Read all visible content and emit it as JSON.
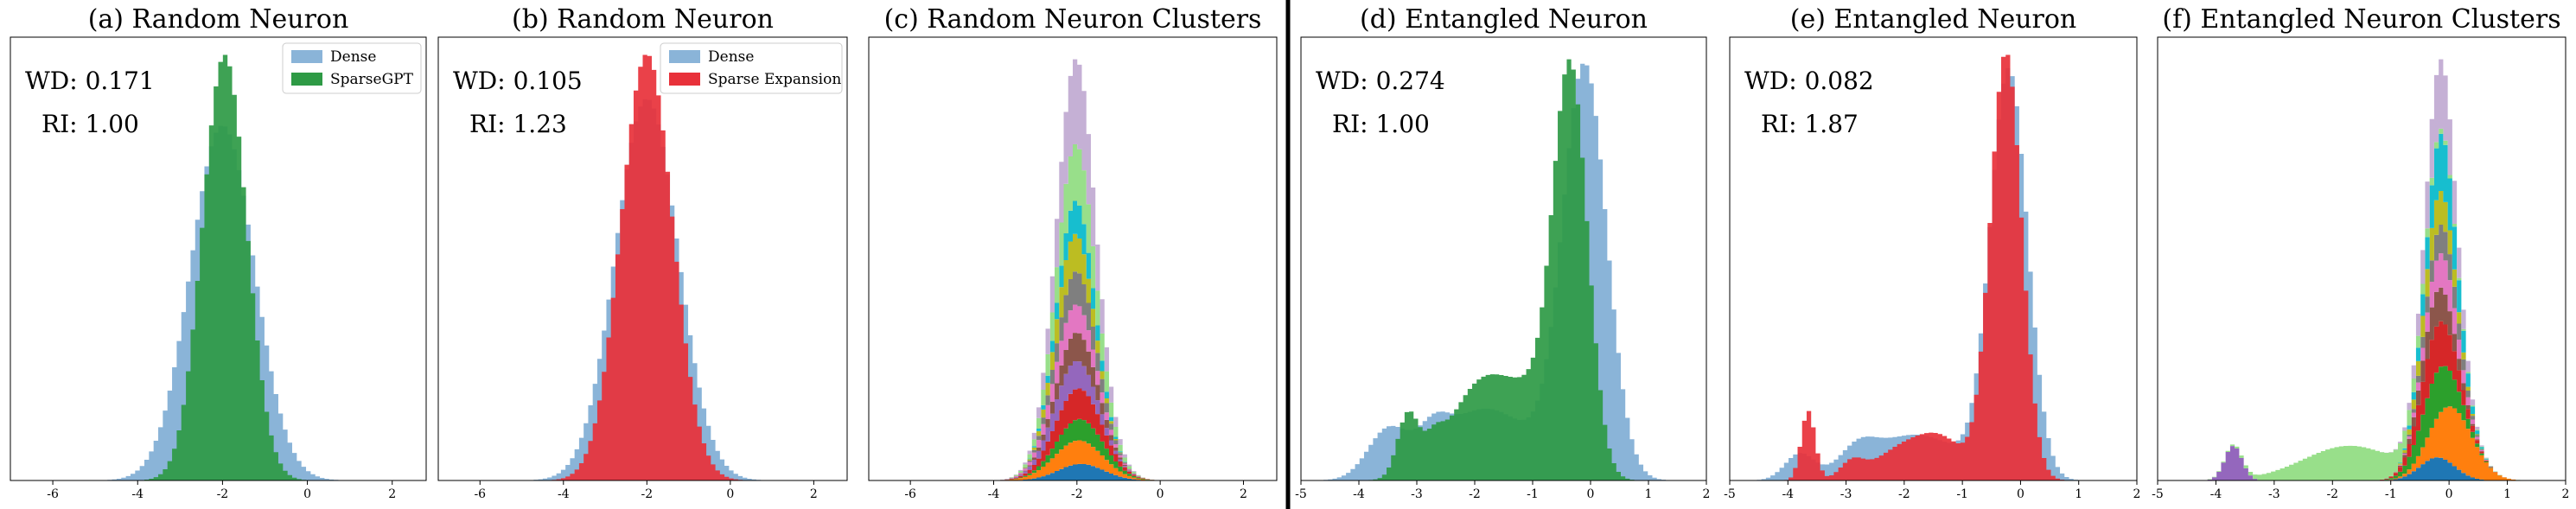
{
  "colors": {
    "dense": "#8ab4d8",
    "sparsegpt": "#2e9a45",
    "sparse_expansion": "#e8313a",
    "separator": "#000000",
    "clusters": [
      "#1f77b4",
      "#ff7f0e",
      "#2ca02c",
      "#d62728",
      "#9467bd",
      "#8c564b",
      "#e377c2",
      "#7f7f7f",
      "#bcbd22",
      "#17becf",
      "#98df8a",
      "#c5b0d5"
    ]
  },
  "chart_data": [
    {
      "id": "a",
      "type": "histogram",
      "title": "(a) Random Neuron",
      "wd_label": "WD: 0.171",
      "ri_label": "RI: 1.00",
      "xlim": [
        -7,
        2.8
      ],
      "xticks": [
        "-6",
        "-4",
        "-2",
        "0",
        "2"
      ],
      "xtick_values": [
        -6,
        -4,
        -2,
        0,
        2
      ],
      "legend": [
        "Dense",
        "SparseGPT"
      ],
      "legend_position": "top-right",
      "series": [
        {
          "name": "Dense",
          "color_key": "dense",
          "components": [
            [
              1.0,
              -2.0,
              0.75
            ]
          ],
          "peak": 0.8
        },
        {
          "name": "SparseGPT",
          "color_key": "sparsegpt",
          "components": [
            [
              1.0,
              -1.95,
              0.52
            ]
          ],
          "peak": 0.96
        }
      ]
    },
    {
      "id": "b",
      "type": "histogram",
      "title": "(b) Random Neuron",
      "wd_label": "WD: 0.105",
      "ri_label": "RI: 1.23",
      "xlim": [
        -7,
        2.8
      ],
      "xticks": [
        "-6",
        "-4",
        "-2",
        "0",
        "2"
      ],
      "xtick_values": [
        -6,
        -4,
        -2,
        0,
        2
      ],
      "legend": [
        "Dense",
        "Sparse Expansion"
      ],
      "legend_position": "top-right",
      "series": [
        {
          "name": "Dense",
          "color_key": "dense",
          "components": [
            [
              1.0,
              -2.0,
              0.75
            ]
          ],
          "peak": 0.86
        },
        {
          "name": "Sparse Expansion",
          "color_key": "sparse_expansion",
          "components": [
            [
              1.0,
              -2.0,
              0.62
            ]
          ],
          "peak": 0.96
        }
      ]
    },
    {
      "id": "c",
      "type": "stacked_histogram",
      "title": "(c) Random Neuron Clusters",
      "xlim": [
        -7,
        2.8
      ],
      "xticks": [
        "-6",
        "-4",
        "-2",
        "0",
        "2"
      ],
      "xtick_values": [
        -6,
        -4,
        -2,
        0,
        2
      ],
      "clusters": [
        {
          "mu": -1.9,
          "sd": 0.55,
          "w": 0.035
        },
        {
          "mu": -2.0,
          "sd": 0.6,
          "w": 0.05
        },
        {
          "mu": -1.9,
          "sd": 0.55,
          "w": 0.045
        },
        {
          "mu": -2.0,
          "sd": 0.55,
          "w": 0.065
        },
        {
          "mu": -2.1,
          "sd": 0.5,
          "w": 0.06
        },
        {
          "mu": -2.0,
          "sd": 0.45,
          "w": 0.06
        },
        {
          "mu": -2.1,
          "sd": 0.5,
          "w": 0.06
        },
        {
          "mu": -2.0,
          "sd": 0.45,
          "w": 0.07
        },
        {
          "mu": -2.1,
          "sd": 0.4,
          "w": 0.08
        },
        {
          "mu": -2.0,
          "sd": 0.4,
          "w": 0.07
        },
        {
          "mu": -2.0,
          "sd": 0.5,
          "w": 0.12
        },
        {
          "mu": -2.0,
          "sd": 0.45,
          "w": 0.18
        }
      ],
      "peak": 0.95
    },
    {
      "id": "d",
      "type": "histogram",
      "title": "(d) Entangled Neuron",
      "wd_label": "WD: 0.274",
      "ri_label": "RI: 1.00",
      "xlim": [
        -5,
        2
      ],
      "xticks": [
        "-5",
        "-4",
        "-3",
        "-2",
        "-1",
        "0",
        "1",
        "2"
      ],
      "xtick_values": [
        -5,
        -4,
        -3,
        -2,
        -1,
        0,
        1,
        2
      ],
      "series": [
        {
          "name": "Dense",
          "color_key": "dense",
          "components": [
            [
              0.8,
              -0.1,
              0.38
            ],
            [
              0.09,
              -3.5,
              0.35
            ],
            [
              0.05,
              -2.7,
              0.25
            ],
            [
              0.14,
              -1.8,
              0.8
            ]
          ],
          "peak": 0.94
        },
        {
          "name": "SparseGPT",
          "color_key": "sparsegpt",
          "components": [
            [
              0.8,
              -0.35,
              0.3
            ],
            [
              0.12,
              -3.15,
              0.18
            ],
            [
              0.04,
              -2.7,
              0.15
            ],
            [
              0.2,
              -1.8,
              0.6
            ],
            [
              0.08,
              -1.0,
              0.35
            ]
          ],
          "peak": 0.95
        }
      ]
    },
    {
      "id": "e",
      "type": "histogram",
      "title": "(e) Entangled Neuron",
      "wd_label": "WD: 0.082",
      "ri_label": "RI: 1.87",
      "xlim": [
        -5,
        2
      ],
      "xticks": [
        "-5",
        "-4",
        "-3",
        "-2",
        "-1",
        "0",
        "1",
        "2"
      ],
      "xtick_values": [
        -5,
        -4,
        -3,
        -2,
        -1,
        0,
        1,
        2
      ],
      "series": [
        {
          "name": "Dense",
          "color_key": "dense",
          "components": [
            [
              0.8,
              -0.2,
              0.32
            ],
            [
              0.05,
              -3.8,
              0.25
            ],
            [
              0.04,
              -2.8,
              0.3
            ],
            [
              0.09,
              -1.8,
              0.8
            ]
          ],
          "peak": 0.93
        },
        {
          "name": "Sparse Expansion",
          "color_key": "sparse_expansion",
          "components": [
            [
              0.8,
              -0.25,
              0.27
            ],
            [
              0.13,
              -3.65,
              0.12
            ],
            [
              0.03,
              -2.9,
              0.2
            ],
            [
              0.06,
              -2.0,
              0.5
            ],
            [
              0.06,
              -1.3,
              0.4
            ]
          ],
          "peak": 0.96
        }
      ]
    },
    {
      "id": "f",
      "type": "stacked_histogram",
      "title": "(f) Entangled Neuron Clusters",
      "xlim": [
        -5,
        2
      ],
      "xticks": [
        "-5",
        "-4",
        "-3",
        "-2",
        "-1",
        "0",
        "1",
        "2"
      ],
      "xtick_values": [
        -5,
        -4,
        -3,
        -2,
        -1,
        0,
        1,
        2
      ],
      "clusters": [
        {
          "mu": -0.2,
          "sd": 0.3,
          "w": 0.04
        },
        {
          "mu": 0.1,
          "sd": 0.35,
          "w": 0.1
        },
        {
          "mu": -0.2,
          "sd": 0.3,
          "w": 0.08
        },
        {
          "mu": -0.2,
          "sd": 0.3,
          "w": 0.08
        },
        {
          "mu": -3.7,
          "sd": 0.15,
          "w": 0.06
        },
        {
          "mu": -0.2,
          "sd": 0.25,
          "w": 0.06
        },
        {
          "mu": -0.1,
          "sd": 0.25,
          "w": 0.06
        },
        {
          "mu": -0.1,
          "sd": 0.25,
          "w": 0.05
        },
        {
          "mu": -0.2,
          "sd": 0.25,
          "w": 0.06
        },
        {
          "mu": -0.1,
          "sd": 0.25,
          "w": 0.1
        },
        {
          "mu": -1.7,
          "sd": 0.8,
          "w": 0.06
        },
        {
          "mu": -0.15,
          "sd": 0.25,
          "w": 0.12
        }
      ],
      "peak": 0.95
    }
  ]
}
